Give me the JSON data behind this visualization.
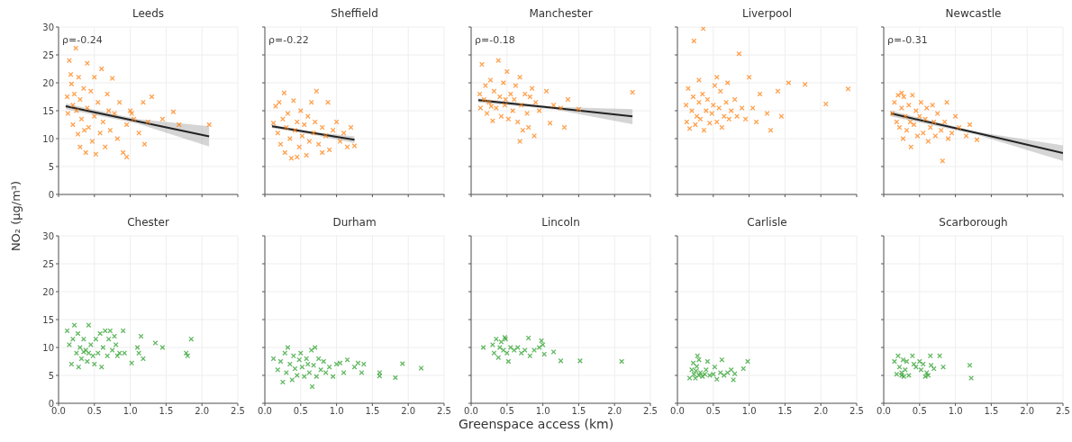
{
  "chart_data": [
    {
      "type": "scatter",
      "title": "Leeds",
      "xlim": [
        0,
        2.5
      ],
      "xticks": [
        0,
        0.5,
        1,
        1.5,
        2,
        2.5
      ],
      "ylim": [
        0,
        30
      ],
      "yticks": [
        0,
        5,
        10,
        15,
        20,
        25,
        30
      ],
      "grid": true,
      "marker": "cross",
      "tick_labels": "y",
      "annotations": [
        "ρ=-0.24"
      ],
      "series": [
        {
          "color": "#ff7f0e",
          "x": [
            0.12,
            0.13,
            0.15,
            0.17,
            0.18,
            0.2,
            0.2,
            0.22,
            0.24,
            0.25,
            0.27,
            0.28,
            0.3,
            0.3,
            0.32,
            0.35,
            0.36,
            0.38,
            0.4,
            0.4,
            0.42,
            0.45,
            0.47,
            0.5,
            0.5,
            0.52,
            0.55,
            0.58,
            0.6,
            0.62,
            0.65,
            0.68,
            0.7,
            0.72,
            0.75,
            0.78,
            0.82,
            0.85,
            0.9,
            0.95,
            1.0,
            1.05,
            1.12,
            1.18,
            1.2,
            1.25,
            1.3,
            1.45,
            1.6,
            1.68,
            2.1,
            0.95,
            1.02
          ],
          "values": [
            17.5,
            14.5,
            24,
            21.5,
            19.8,
            16,
            12.5,
            18,
            26.2,
            15,
            10.8,
            21,
            8.5,
            17,
            13.5,
            19,
            11.5,
            7.5,
            23.5,
            15.5,
            12,
            18.5,
            9.5,
            21,
            14,
            7.2,
            16.5,
            11,
            22.5,
            13,
            8.5,
            18,
            15,
            11.5,
            20.8,
            14.5,
            10,
            16.5,
            7.5,
            12.5,
            15,
            13.5,
            11,
            16.5,
            9,
            13,
            17.5,
            13.5,
            14.8,
            12.5,
            12.5,
            6.7,
            14.5
          ]
        },
        {
          "type": "line",
          "color": "#222222",
          "marker": "none",
          "x": [
            0.1,
            1.1,
            2.1
          ],
          "values": [
            15.8,
            13.1,
            10.4
          ],
          "lower": [
            15.3,
            12.7,
            8.6
          ],
          "upper": [
            16.3,
            13.5,
            12.2
          ]
        }
      ]
    },
    {
      "type": "scatter",
      "title": "Sheffield",
      "xlim": [
        0,
        2.5
      ],
      "xticks": [
        0,
        0.5,
        1,
        1.5,
        2,
        2.5
      ],
      "ylim": [
        0,
        30
      ],
      "yticks": [
        0,
        5,
        10,
        15,
        20,
        25,
        30
      ],
      "grid": true,
      "marker": "cross",
      "tick_labels": false,
      "annotations": [
        "ρ=-0.22"
      ],
      "series": [
        {
          "color": "#ff7f0e",
          "x": [
            0.12,
            0.15,
            0.18,
            0.2,
            0.22,
            0.25,
            0.27,
            0.28,
            0.3,
            0.32,
            0.35,
            0.37,
            0.4,
            0.42,
            0.45,
            0.48,
            0.5,
            0.52,
            0.55,
            0.58,
            0.6,
            0.62,
            0.65,
            0.68,
            0.7,
            0.72,
            0.75,
            0.8,
            0.85,
            0.88,
            0.9,
            0.95,
            1.0,
            1.05,
            1.1,
            1.15,
            1.2,
            1.25,
            0.45,
            0.8
          ],
          "values": [
            12.8,
            15.8,
            11,
            16.5,
            9,
            13.5,
            18.2,
            7.5,
            12,
            14.5,
            10,
            6.5,
            16.8,
            11.5,
            13,
            8.5,
            15,
            10.5,
            12.5,
            7,
            14,
            9.5,
            16.5,
            11,
            13,
            18.5,
            9,
            12,
            10.5,
            16.5,
            8,
            11.5,
            13,
            9.5,
            11,
            8.5,
            12,
            8.7,
            6.7,
            7.5
          ]
        },
        {
          "type": "line",
          "color": "#222222",
          "marker": "none",
          "x": [
            0.1,
            0.675,
            1.25
          ],
          "values": [
            12.2,
            11.0,
            9.8
          ],
          "lower": [
            11.9,
            10.7,
            9.2
          ],
          "upper": [
            12.5,
            11.2,
            10.4
          ]
        }
      ]
    },
    {
      "type": "scatter",
      "title": "Manchester",
      "xlim": [
        0,
        2.5
      ],
      "xticks": [
        0,
        0.5,
        1,
        1.5,
        2,
        2.5
      ],
      "ylim": [
        0,
        30
      ],
      "yticks": [
        0,
        5,
        10,
        15,
        20,
        25,
        30
      ],
      "grid": true,
      "marker": "cross",
      "tick_labels": false,
      "annotations": [
        "ρ=-0.18"
      ],
      "series": [
        {
          "color": "#ff7f0e",
          "x": [
            0.12,
            0.13,
            0.15,
            0.18,
            0.2,
            0.22,
            0.25,
            0.27,
            0.3,
            0.32,
            0.35,
            0.38,
            0.4,
            0.42,
            0.45,
            0.47,
            0.5,
            0.52,
            0.55,
            0.58,
            0.6,
            0.62,
            0.65,
            0.68,
            0.7,
            0.72,
            0.75,
            0.78,
            0.8,
            0.82,
            0.85,
            0.88,
            0.9,
            0.95,
            0.68,
            1.05,
            1.1,
            1.15,
            1.25,
            1.3,
            1.35,
            1.5,
            2.25,
            0.28,
            0.48
          ],
          "values": [
            18,
            15.5,
            23.3,
            17,
            19.5,
            14.5,
            16.5,
            20.5,
            13.2,
            18.5,
            15.5,
            24,
            17.5,
            14,
            20,
            16,
            22,
            13.5,
            18,
            15,
            17,
            19.5,
            13,
            21,
            16,
            11.5,
            18,
            14.5,
            12,
            17.5,
            19,
            10.5,
            16.5,
            15,
            9.5,
            18.5,
            12.8,
            16,
            15.5,
            12,
            17,
            15.3,
            18.3,
            15.8,
            17
          ]
        },
        {
          "type": "line",
          "color": "#222222",
          "marker": "none",
          "x": [
            0.1,
            1.175,
            2.25
          ],
          "values": [
            16.9,
            15.5,
            14.0
          ],
          "lower": [
            16.5,
            15.2,
            12.6
          ],
          "upper": [
            17.2,
            15.7,
            15.3
          ]
        }
      ]
    },
    {
      "type": "scatter",
      "title": "Liverpool",
      "xlim": [
        0,
        2.5
      ],
      "xticks": [
        0,
        0.5,
        1,
        1.5,
        2,
        2.5
      ],
      "ylim": [
        0,
        30
      ],
      "yticks": [
        0,
        5,
        10,
        15,
        20,
        25,
        30
      ],
      "grid": true,
      "marker": "cross",
      "tick_labels": false,
      "series": [
        {
          "color": "#ff7f0e",
          "x": [
            0.12,
            0.13,
            0.15,
            0.17,
            0.2,
            0.22,
            0.23,
            0.25,
            0.27,
            0.36,
            0.3,
            0.3,
            0.32,
            0.35,
            0.37,
            0.4,
            0.42,
            0.45,
            0.48,
            0.5,
            0.52,
            0.55,
            0.55,
            0.58,
            0.6,
            0.62,
            0.65,
            0.68,
            0.7,
            0.72,
            0.75,
            0.8,
            0.83,
            0.86,
            0.9,
            0.95,
            1.0,
            1.05,
            1.1,
            1.15,
            1.25,
            1.3,
            1.4,
            1.45,
            1.55,
            1.78,
            2.07,
            2.38
          ],
          "values": [
            16,
            13,
            19,
            11.8,
            15,
            17.5,
            27.5,
            12.5,
            14,
            29.7,
            16.5,
            20.5,
            13.5,
            18,
            11.5,
            15,
            17,
            12.8,
            14.5,
            16,
            19.5,
            13,
            21,
            15.5,
            18.5,
            12,
            14,
            16.5,
            20,
            13.5,
            15,
            17,
            14,
            25.2,
            15.5,
            13.5,
            21,
            15.5,
            13,
            18,
            14.5,
            11.5,
            18.5,
            14,
            20,
            19.7,
            16.2,
            18.9
          ]
        }
      ]
    },
    {
      "type": "scatter",
      "title": "Newcastle",
      "xlim": [
        0,
        2.5
      ],
      "xticks": [
        0,
        0.5,
        1,
        1.5,
        2,
        2.5
      ],
      "ylim": [
        0,
        30
      ],
      "yticks": [
        0,
        5,
        10,
        15,
        20,
        25,
        30
      ],
      "grid": true,
      "marker": "cross",
      "tick_labels": false,
      "annotations": [
        "ρ=-0.31"
      ],
      "series": [
        {
          "color": "#ff7f0e",
          "x": [
            0.12,
            0.15,
            0.18,
            0.2,
            0.22,
            0.25,
            0.27,
            0.28,
            0.3,
            0.32,
            0.35,
            0.37,
            0.38,
            0.4,
            0.42,
            0.45,
            0.47,
            0.5,
            0.52,
            0.55,
            0.58,
            0.6,
            0.62,
            0.65,
            0.68,
            0.7,
            0.72,
            0.75,
            0.8,
            0.82,
            0.85,
            0.88,
            0.9,
            0.95,
            1.0,
            1.05,
            1.15,
            1.2,
            1.3,
            0.25
          ],
          "values": [
            14.5,
            16.5,
            13,
            17.8,
            12,
            15.5,
            10,
            17.5,
            14,
            11.5,
            16,
            13,
            8.5,
            17.8,
            12.5,
            15,
            10.5,
            14,
            16.5,
            11,
            13.5,
            15.5,
            9.5,
            12,
            16,
            13,
            10.5,
            14.5,
            11.5,
            6,
            13,
            16.5,
            10,
            11,
            14,
            12,
            10.5,
            12.5,
            9.8,
            18.2
          ]
        },
        {
          "type": "line",
          "color": "#222222",
          "marker": "none",
          "x": [
            0.1,
            1.3,
            2.5
          ],
          "values": [
            14.5,
            11.0,
            7.4
          ],
          "lower": [
            14.0,
            10.7,
            6.0
          ],
          "upper": [
            15.0,
            11.2,
            8.8
          ]
        }
      ]
    },
    {
      "type": "scatter",
      "title": "Chester",
      "xlim": [
        0,
        2.5
      ],
      "xticks": [
        {
          "value": 0,
          "label": "0.0"
        },
        0.5,
        {
          "value": 1,
          "label": "1.0"
        },
        1.5,
        {
          "value": 2,
          "label": "2.0"
        },
        2.5
      ],
      "ylim": [
        0,
        30
      ],
      "yticks": [
        0,
        5,
        10,
        15,
        20,
        25,
        30
      ],
      "grid": true,
      "marker": "cross",
      "ylabel": "NO₂ (μg/m³)",
      "series": [
        {
          "color": "#2ca02c",
          "x": [
            0.12,
            0.15,
            0.18,
            0.2,
            0.22,
            0.25,
            0.27,
            0.28,
            0.3,
            0.32,
            0.35,
            0.38,
            0.4,
            0.42,
            0.45,
            0.48,
            0.5,
            0.52,
            0.55,
            0.58,
            0.6,
            0.62,
            0.65,
            0.68,
            0.7,
            0.72,
            0.75,
            0.78,
            0.8,
            0.82,
            0.85,
            0.9,
            0.92,
            1.02,
            1.1,
            1.12,
            1.15,
            1.18,
            1.35,
            1.45,
            1.78,
            1.8,
            1.85,
            0.35,
            0.42
          ],
          "values": [
            13,
            10.5,
            7,
            11.5,
            14,
            9,
            12.5,
            6.5,
            10,
            8,
            11.5,
            9.5,
            7.5,
            14,
            10.5,
            8.5,
            7,
            11.5,
            9,
            12.5,
            6.5,
            10,
            13,
            8.5,
            11.5,
            13,
            9.5,
            12,
            10.5,
            8.5,
            9,
            13,
            9,
            7.2,
            10,
            9,
            12,
            8,
            10.8,
            10,
            9,
            8.5,
            11.5,
            9.2,
            9.0
          ]
        }
      ]
    },
    {
      "type": "scatter",
      "title": "Durham",
      "xlim": [
        0,
        2.5
      ],
      "xticks": [
        {
          "value": 0,
          "label": "0.0"
        },
        0.5,
        {
          "value": 1,
          "label": "1.0"
        },
        1.5,
        {
          "value": 2,
          "label": "2.0"
        },
        2.5
      ],
      "ylim": [
        0,
        30
      ],
      "yticks": [
        0,
        5,
        10,
        15,
        20,
        25,
        30
      ],
      "grid": true,
      "marker": "cross",
      "tick_labels": "x",
      "series": [
        {
          "color": "#2ca02c",
          "x": [
            0.12,
            0.18,
            0.22,
            0.25,
            0.28,
            0.3,
            0.32,
            0.35,
            0.38,
            0.4,
            0.42,
            0.45,
            0.48,
            0.5,
            0.52,
            0.55,
            0.58,
            0.6,
            0.62,
            0.65,
            0.66,
            0.68,
            0.7,
            0.72,
            0.75,
            0.78,
            0.82,
            0.85,
            0.9,
            0.95,
            1.0,
            1.05,
            1.1,
            1.15,
            1.25,
            1.3,
            1.35,
            1.38,
            1.6,
            1.6,
            1.82,
            1.92,
            2.18
          ],
          "values": [
            8,
            6,
            7.5,
            3.8,
            9,
            5.5,
            10,
            7,
            4.2,
            8.5,
            6.2,
            5,
            7.8,
            9,
            6.5,
            4.8,
            8,
            7,
            5.5,
            9.5,
            3,
            6.8,
            10,
            4.8,
            8,
            6,
            7.5,
            5.5,
            6.5,
            4.8,
            7,
            7.2,
            5.5,
            7.8,
            6.5,
            7.2,
            5.5,
            7,
            5.5,
            4.9,
            4.6,
            7.1,
            6.3
          ]
        }
      ]
    },
    {
      "type": "scatter",
      "title": "Lincoln",
      "xlim": [
        0,
        2.5
      ],
      "xticks": [
        {
          "value": 0,
          "label": "0.0"
        },
        0.5,
        {
          "value": 1,
          "label": "1.0"
        },
        1.5,
        {
          "value": 2,
          "label": "2.0"
        },
        2.5
      ],
      "ylim": [
        0,
        30
      ],
      "yticks": [
        0,
        5,
        10,
        15,
        20,
        25,
        30
      ],
      "grid": true,
      "marker": "cross",
      "tick_labels": "x",
      "xlabel": "Greenspace access (km)",
      "series": [
        {
          "color": "#2ca02c",
          "x": [
            0.17,
            0.3,
            0.32,
            0.35,
            0.38,
            0.4,
            0.42,
            0.45,
            0.48,
            0.5,
            0.52,
            0.55,
            0.6,
            0.65,
            0.75,
            0.8,
            0.82,
            0.88,
            0.95,
            0.98,
            1.0,
            1.02,
            1.15,
            1.25,
            1.52,
            2.1,
            0.47,
            0.7
          ],
          "values": [
            10,
            10.5,
            9,
            11.5,
            8.2,
            10,
            11,
            9.5,
            11.5,
            9,
            7.5,
            10,
            9.5,
            10,
            9.5,
            11.7,
            8.5,
            9.5,
            10,
            11.2,
            10.5,
            8.8,
            9.2,
            7.6,
            7.6,
            7.5,
            11.8,
            9
          ]
        }
      ]
    },
    {
      "type": "scatter",
      "title": "Carlisle",
      "xlim": [
        0,
        2.5
      ],
      "xticks": [
        {
          "value": 0,
          "label": "0.0"
        },
        0.5,
        {
          "value": 1,
          "label": "1.0"
        },
        1.5,
        {
          "value": 2,
          "label": "2.0"
        },
        2.5
      ],
      "ylim": [
        0,
        30
      ],
      "yticks": [
        0,
        5,
        10,
        15,
        20,
        25,
        30
      ],
      "grid": true,
      "marker": "cross",
      "tick_labels": "x",
      "series": [
        {
          "color": "#2ca02c",
          "x": [
            0.17,
            0.2,
            0.22,
            0.23,
            0.25,
            0.27,
            0.28,
            0.3,
            0.3,
            0.32,
            0.35,
            0.38,
            0.4,
            0.42,
            0.45,
            0.5,
            0.52,
            0.55,
            0.6,
            0.62,
            0.65,
            0.7,
            0.75,
            0.78,
            0.8,
            0.92,
            0.98,
            0.26
          ],
          "values": [
            4.5,
            6,
            7.2,
            5.2,
            4.5,
            6.6,
            8.5,
            5,
            7.8,
            5.5,
            4.8,
            5.2,
            6,
            7.5,
            5,
            5.2,
            6.5,
            4.3,
            5.5,
            7.8,
            5,
            5.5,
            6,
            4.2,
            5.3,
            6.2,
            7.5,
            5.8
          ]
        }
      ]
    },
    {
      "type": "scatter",
      "title": "Scarborough",
      "xlim": [
        0,
        2.5
      ],
      "xticks": [
        {
          "value": 0,
          "label": "0.0"
        },
        0.5,
        {
          "value": 1,
          "label": "1.0"
        },
        1.5,
        {
          "value": 2,
          "label": "2.0"
        },
        2.5
      ],
      "ylim": [
        0,
        30
      ],
      "yticks": [
        0,
        5,
        10,
        15,
        20,
        25,
        30
      ],
      "grid": true,
      "marker": "cross",
      "tick_labels": "x",
      "series": [
        {
          "color": "#2ca02c",
          "x": [
            0.15,
            0.18,
            0.2,
            0.22,
            0.25,
            0.27,
            0.28,
            0.3,
            0.32,
            0.35,
            0.4,
            0.42,
            0.45,
            0.5,
            0.52,
            0.55,
            0.58,
            0.6,
            0.65,
            0.66,
            0.7,
            0.78,
            0.83,
            1.2,
            1.22,
            0.62,
            0.25
          ],
          "values": [
            7.5,
            5.2,
            8.5,
            6.5,
            5,
            7.8,
            4.8,
            6,
            7.5,
            5,
            8.5,
            7,
            6.5,
            7.5,
            6,
            7,
            4.8,
            5.5,
            8.5,
            6.8,
            6.2,
            8.5,
            6.5,
            6.8,
            4.5,
            5,
            5.5
          ]
        }
      ]
    }
  ]
}
